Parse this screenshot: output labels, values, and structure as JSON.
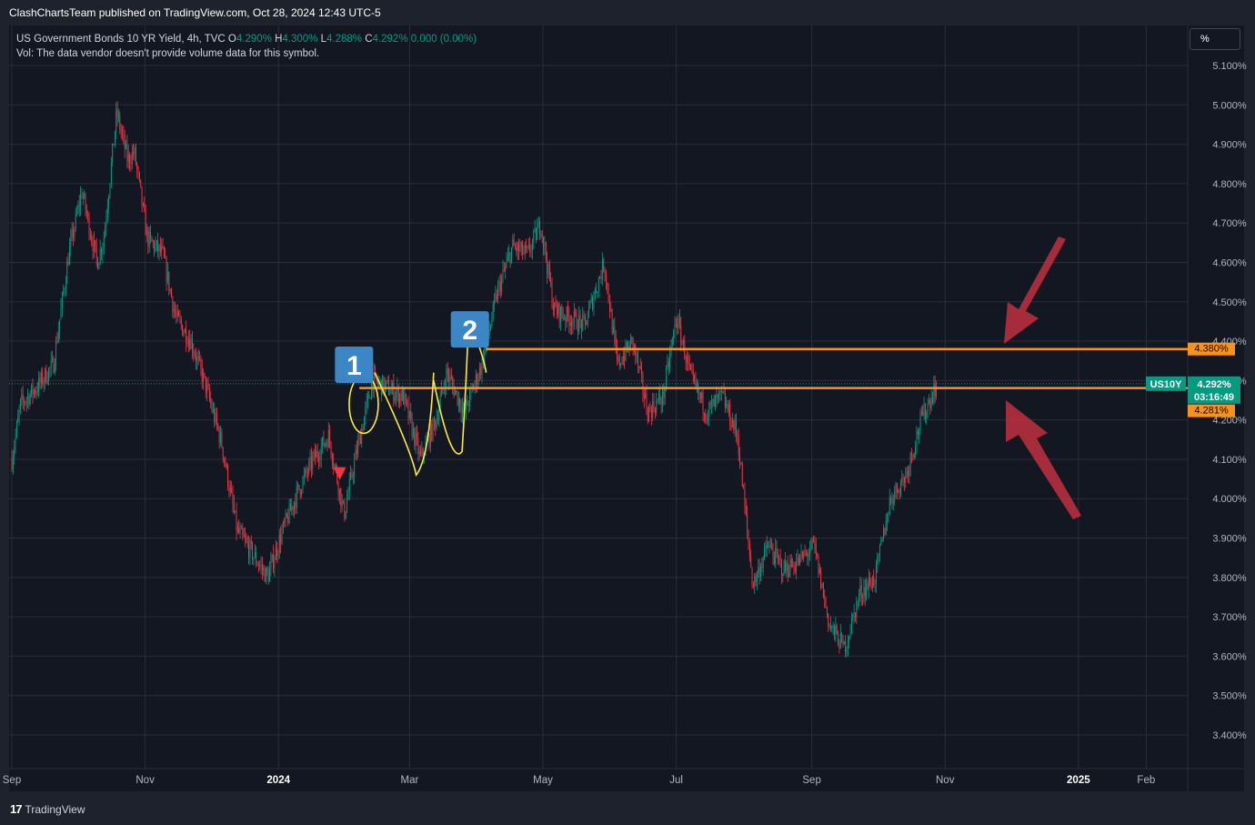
{
  "header": {
    "publisher_text": "ClashChartsTeam published on TradingView.com, Oct 28, 2024 12:43 UTC-5"
  },
  "legend": {
    "symbol": "US Government Bonds 10 YR Yield, 4h, TVC",
    "o_label": "O",
    "o_value": "4.290%",
    "h_label": "H",
    "h_value": "4.300%",
    "l_label": "L",
    "l_value": "4.288%",
    "c_label": "C",
    "c_value": "4.292%",
    "change": "0.000 (0.00%)",
    "volume_note": "Vol: The data vendor doesn't provide volume data for this symbol."
  },
  "unit_button": "%",
  "footer": {
    "brand": "TradingView",
    "brand_mark": "17"
  },
  "chart_data": {
    "type": "candlestick",
    "ylim": [
      3.35,
      5.15
    ],
    "y_ticks": [
      "3.400%",
      "3.500%",
      "3.600%",
      "3.700%",
      "3.800%",
      "3.900%",
      "4.000%",
      "4.100%",
      "4.200%",
      "4.300%",
      "4.400%",
      "4.500%",
      "4.600%",
      "4.700%",
      "4.800%",
      "4.900%",
      "5.000%",
      "5.100%"
    ],
    "y_tick_values": [
      3.4,
      3.5,
      3.6,
      3.7,
      3.8,
      3.9,
      4.0,
      4.1,
      4.2,
      4.3,
      4.4,
      4.5,
      4.6,
      4.7,
      4.8,
      4.9,
      5.0,
      5.1
    ],
    "x_start": "2023-09-01",
    "x_end": "2025-02-20",
    "x_ticks": [
      {
        "label": "Sep",
        "date": "2023-09-01",
        "bold": false
      },
      {
        "label": "Nov",
        "date": "2023-11-01",
        "bold": false
      },
      {
        "label": "2024",
        "date": "2024-01-01",
        "bold": true
      },
      {
        "label": "Mar",
        "date": "2024-03-01",
        "bold": false
      },
      {
        "label": "May",
        "date": "2024-05-01",
        "bold": false
      },
      {
        "label": "Jul",
        "date": "2024-07-01",
        "bold": false
      },
      {
        "label": "Sep",
        "date": "2024-09-01",
        "bold": false
      },
      {
        "label": "Nov",
        "date": "2024-11-01",
        "bold": false
      },
      {
        "label": "2025",
        "date": "2025-01-01",
        "bold": true
      },
      {
        "label": "Feb",
        "date": "2025-02-01",
        "bold": false
      }
    ],
    "price_path": [
      [
        "2023-09-01",
        4.1
      ],
      [
        "2023-09-05",
        4.24
      ],
      [
        "2023-09-12",
        4.28
      ],
      [
        "2023-09-20",
        4.34
      ],
      [
        "2023-09-27",
        4.62
      ],
      [
        "2023-10-03",
        4.78
      ],
      [
        "2023-10-10",
        4.6
      ],
      [
        "2023-10-13",
        4.66
      ],
      [
        "2023-10-19",
        4.98
      ],
      [
        "2023-10-24",
        4.86
      ],
      [
        "2023-10-27",
        4.88
      ],
      [
        "2023-11-02",
        4.66
      ],
      [
        "2023-11-09",
        4.62
      ],
      [
        "2023-11-15",
        4.46
      ],
      [
        "2023-11-22",
        4.4
      ],
      [
        "2023-11-29",
        4.28
      ],
      [
        "2023-12-06",
        4.14
      ],
      [
        "2023-12-13",
        3.92
      ],
      [
        "2023-12-20",
        3.86
      ],
      [
        "2023-12-27",
        3.8
      ],
      [
        "2024-01-03",
        3.92
      ],
      [
        "2024-01-10",
        4.02
      ],
      [
        "2024-01-17",
        4.1
      ],
      [
        "2024-01-24",
        4.16
      ],
      [
        "2024-01-31",
        3.96
      ],
      [
        "2024-02-05",
        4.1
      ],
      [
        "2024-02-13",
        4.3
      ],
      [
        "2024-02-20",
        4.28
      ],
      [
        "2024-02-27",
        4.26
      ],
      [
        "2024-03-06",
        4.1
      ],
      [
        "2024-03-13",
        4.2
      ],
      [
        "2024-03-18",
        4.32
      ],
      [
        "2024-03-26",
        4.22
      ],
      [
        "2024-04-03",
        4.34
      ],
      [
        "2024-04-10",
        4.52
      ],
      [
        "2024-04-17",
        4.64
      ],
      [
        "2024-04-24",
        4.62
      ],
      [
        "2024-04-30",
        4.7
      ],
      [
        "2024-05-06",
        4.48
      ],
      [
        "2024-05-13",
        4.46
      ],
      [
        "2024-05-20",
        4.44
      ],
      [
        "2024-05-29",
        4.6
      ],
      [
        "2024-06-04",
        4.34
      ],
      [
        "2024-06-11",
        4.4
      ],
      [
        "2024-06-18",
        4.22
      ],
      [
        "2024-06-25",
        4.26
      ],
      [
        "2024-07-01",
        4.46
      ],
      [
        "2024-07-08",
        4.3
      ],
      [
        "2024-07-15",
        4.22
      ],
      [
        "2024-07-22",
        4.26
      ],
      [
        "2024-07-29",
        4.16
      ],
      [
        "2024-08-05",
        3.78
      ],
      [
        "2024-08-12",
        3.88
      ],
      [
        "2024-08-19",
        3.82
      ],
      [
        "2024-08-26",
        3.84
      ],
      [
        "2024-09-02",
        3.88
      ],
      [
        "2024-09-09",
        3.68
      ],
      [
        "2024-09-16",
        3.62
      ],
      [
        "2024-09-23",
        3.76
      ],
      [
        "2024-09-30",
        3.8
      ],
      [
        "2024-10-07",
        4.0
      ],
      [
        "2024-10-14",
        4.06
      ],
      [
        "2024-10-21",
        4.2
      ],
      [
        "2024-10-28",
        4.29
      ]
    ],
    "current_price": 4.292,
    "price_tags": [
      {
        "text": "US10Y",
        "price": 4.292,
        "color": "#089981"
      },
      {
        "text": "4.292%",
        "price": 4.292,
        "color": "#089981"
      },
      {
        "text": "03:16:49",
        "price": 4.292,
        "color": "#089981"
      },
      {
        "text": "4.380%",
        "price": 4.38,
        "color": "#f7931a"
      },
      {
        "text": "4.281%",
        "price": 4.281,
        "color": "#f7931a"
      }
    ],
    "horizontal_levels": [
      {
        "price": 4.38,
        "from": "2024-04-05",
        "color": "#f7931a"
      },
      {
        "price": 4.281,
        "from": "2024-02-07",
        "color": "#f7931a"
      }
    ],
    "markers": [
      {
        "label": "1",
        "date": "2024-02-05",
        "price": 4.34
      },
      {
        "label": "2",
        "date": "2024-03-29",
        "price": 4.43
      }
    ],
    "colors": {
      "up": "#089981",
      "down": "#f23645",
      "grid": "#2a2e39",
      "level": "#f7931a",
      "highlight": "#ffeb3b",
      "arrow": "#c2303f",
      "marker": "#3d86c6"
    }
  }
}
